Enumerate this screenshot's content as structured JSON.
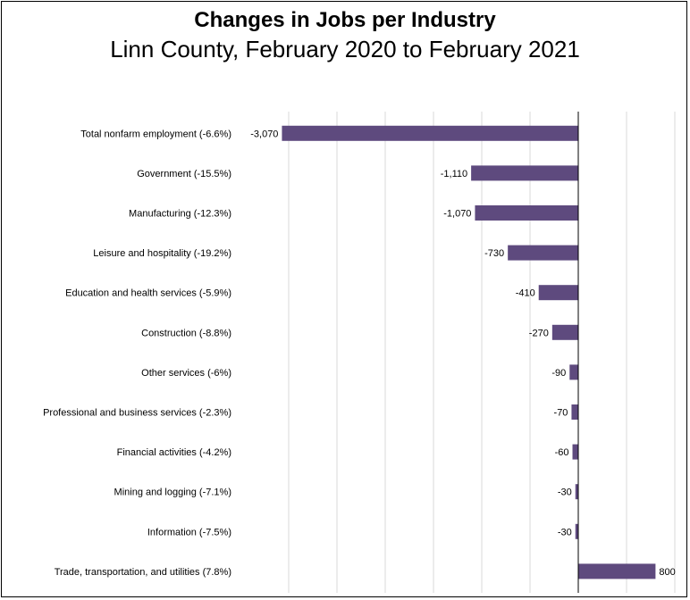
{
  "chart_data": {
    "type": "bar",
    "orientation": "horizontal",
    "title": "Changes in Jobs per Industry",
    "subtitle": "Linn County, February 2020 to February 2021",
    "categories": [
      "Total nonfarm employment (-6.6%)",
      "Government (-15.5%)",
      "Manufacturing (-12.3%)",
      "Leisure and hospitality (-19.2%)",
      "Education and health services (-5.9%)",
      "Construction (-8.8%)",
      "Other services (-6%)",
      "Professional and business services (-2.3%)",
      "Financial activities (-4.2%)",
      "Mining and logging (-7.1%)",
      "Information (-7.5%)",
      "Trade, transportation, and utilities (7.8%)"
    ],
    "values": [
      -3070,
      -1110,
      -1070,
      -730,
      -410,
      -270,
      -90,
      -70,
      -60,
      -30,
      -30,
      800
    ],
    "value_labels": [
      "-3,070",
      "-1,110",
      "-1,070",
      "-730",
      "-410",
      "-270",
      "-90",
      "-70",
      "-60",
      "-30",
      "-30",
      "800"
    ],
    "xlim": [
      -3500,
      1000
    ],
    "grid": true,
    "bar_color": "#5e4a7e",
    "grid_color": "#d9d9d9",
    "axis_color": "#000000"
  }
}
